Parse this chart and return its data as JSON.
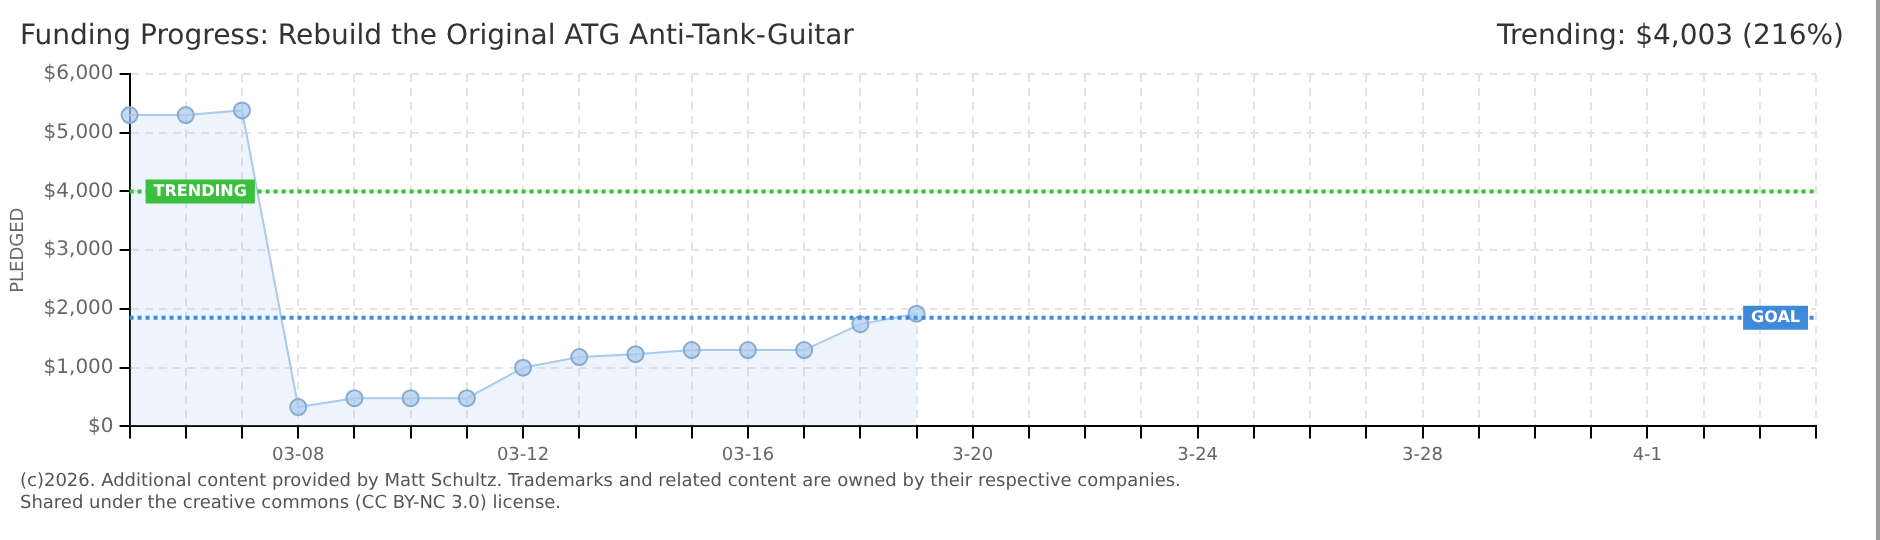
{
  "chart_data": {
    "type": "area",
    "title": "Funding Progress: Rebuild the Original ATG Anti-Tank-Guitar",
    "subtitle": "Trending: $4,003 (216%)",
    "ylabel": "PLEDGED",
    "categories": [
      null,
      null,
      null,
      "03-08",
      null,
      null,
      null,
      "03-12",
      null,
      null,
      null,
      "03-16",
      null,
      null,
      null,
      "3-20",
      null,
      null,
      null,
      "3-24",
      null,
      null,
      null,
      "3-28",
      null,
      null,
      null,
      "4-1",
      null,
      null,
      null
    ],
    "series": [
      {
        "color": "#a9c9ee",
        "values": [
          5300,
          5300,
          5380,
          330,
          480,
          480,
          480,
          1000,
          1180,
          1230,
          1300,
          1300,
          1300,
          1740,
          1920,
          null,
          null,
          null,
          null,
          null,
          null,
          null,
          null,
          null,
          null,
          null,
          null,
          null,
          null,
          null,
          null
        ]
      }
    ],
    "ylim": [
      0,
      6000
    ],
    "yticks": [
      {
        "value": 0,
        "label": "$0"
      },
      {
        "value": 1000,
        "label": "$1,000"
      },
      {
        "value": 2000,
        "label": "$2,000"
      },
      {
        "value": 3000,
        "label": "$3,000"
      },
      {
        "value": 4000,
        "label": "$4,000"
      },
      {
        "value": 5000,
        "label": "$5,000"
      },
      {
        "value": 6000,
        "label": "$6,000"
      }
    ],
    "ref_lines": [
      {
        "axis": "y",
        "value": 4000,
        "label": "TRENDING",
        "color": "#3cbf3c",
        "line_style": "dotted"
      },
      {
        "axis": "y",
        "value": 1850,
        "label": "GOAL",
        "color": "#3f8ad8",
        "line_style": "dotted"
      }
    ],
    "grid": true,
    "legend": false,
    "marker": "circle",
    "line_style": "solid",
    "annotations": [
      "(c)2026. Additional content provided by Matt Schultz. Trademarks and related content are owned by their respective companies.",
      "Shared under the creative commons (CC BY-NC 3.0) license."
    ]
  }
}
